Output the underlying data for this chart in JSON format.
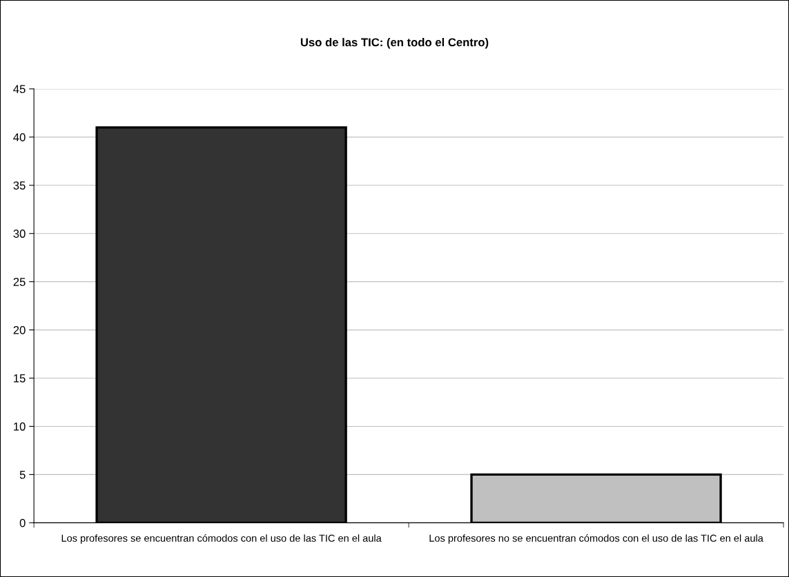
{
  "chart_data": {
    "type": "bar",
    "title": "Uso de las TIC: (en todo el Centro)",
    "categories": [
      "Los profesores se encuentran cómodos con el uso de las TIC en el aula",
      "Los profesores no se encuentran cómodos con el uso de las TIC en el aula"
    ],
    "values": [
      41,
      5
    ],
    "colors": [
      "#333333",
      "#c0c0c0"
    ],
    "ylim": [
      0,
      45
    ],
    "yticks": [
      0,
      5,
      10,
      15,
      20,
      25,
      30,
      35,
      40,
      45
    ],
    "grid": "y"
  }
}
